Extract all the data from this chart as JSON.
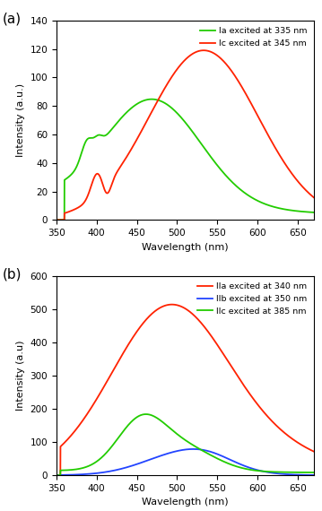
{
  "panel_a": {
    "title_label": "(a)",
    "xlabel": "Wavelength (nm)",
    "ylabel": "Intensity (a.u.)",
    "xlim": [
      350,
      670
    ],
    "ylim": [
      0,
      140
    ],
    "yticks": [
      0,
      20,
      40,
      60,
      80,
      100,
      120,
      140
    ],
    "curves": [
      {
        "label": "Ia excited at 335 nm",
        "color": "#22cc00"
      },
      {
        "label": "Ic excited at 345 nm",
        "color": "#ff2200"
      }
    ]
  },
  "panel_b": {
    "title_label": "(b)",
    "xlabel": "Wavelength (nm)",
    "ylabel": "Intensity (a.u)",
    "xlim": [
      350,
      670
    ],
    "ylim": [
      0,
      600
    ],
    "yticks": [
      0,
      100,
      200,
      300,
      400,
      500,
      600
    ],
    "curves": [
      {
        "label": "IIa excited at 340 nm",
        "color": "#ff2200"
      },
      {
        "label": "IIb excited at 350 nm",
        "color": "#2244ff"
      },
      {
        "label": "IIc excited at 385 nm",
        "color": "#22cc00"
      }
    ]
  }
}
